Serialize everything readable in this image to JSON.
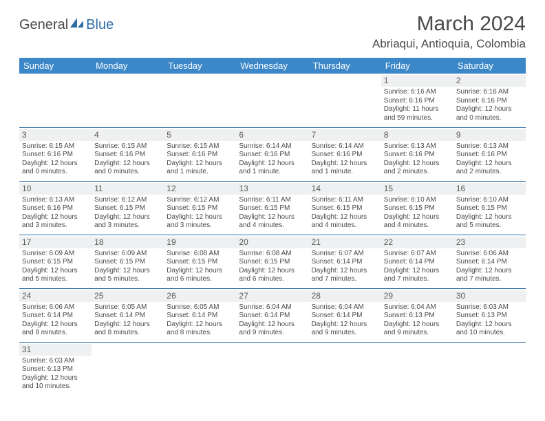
{
  "logo": {
    "text1": "General",
    "text2": "Blue",
    "icon_color": "#2f6da8"
  },
  "title": "March 2024",
  "location": "Abriaqui, Antioquia, Colombia",
  "header_bg": "#3b87c8",
  "dayhead_bg": "#eef0f1",
  "border_color": "#2f6da8",
  "weekdays": [
    "Sunday",
    "Monday",
    "Tuesday",
    "Wednesday",
    "Thursday",
    "Friday",
    "Saturday"
  ],
  "weeks": [
    [
      {
        "n": "",
        "sr": "",
        "ss": "",
        "dl": ""
      },
      {
        "n": "",
        "sr": "",
        "ss": "",
        "dl": ""
      },
      {
        "n": "",
        "sr": "",
        "ss": "",
        "dl": ""
      },
      {
        "n": "",
        "sr": "",
        "ss": "",
        "dl": ""
      },
      {
        "n": "",
        "sr": "",
        "ss": "",
        "dl": ""
      },
      {
        "n": "1",
        "sr": "Sunrise: 6:16 AM",
        "ss": "Sunset: 6:16 PM",
        "dl": "Daylight: 11 hours and 59 minutes."
      },
      {
        "n": "2",
        "sr": "Sunrise: 6:16 AM",
        "ss": "Sunset: 6:16 PM",
        "dl": "Daylight: 12 hours and 0 minutes."
      }
    ],
    [
      {
        "n": "3",
        "sr": "Sunrise: 6:15 AM",
        "ss": "Sunset: 6:16 PM",
        "dl": "Daylight: 12 hours and 0 minutes."
      },
      {
        "n": "4",
        "sr": "Sunrise: 6:15 AM",
        "ss": "Sunset: 6:16 PM",
        "dl": "Daylight: 12 hours and 0 minutes."
      },
      {
        "n": "5",
        "sr": "Sunrise: 6:15 AM",
        "ss": "Sunset: 6:16 PM",
        "dl": "Daylight: 12 hours and 1 minute."
      },
      {
        "n": "6",
        "sr": "Sunrise: 6:14 AM",
        "ss": "Sunset: 6:16 PM",
        "dl": "Daylight: 12 hours and 1 minute."
      },
      {
        "n": "7",
        "sr": "Sunrise: 6:14 AM",
        "ss": "Sunset: 6:16 PM",
        "dl": "Daylight: 12 hours and 1 minute."
      },
      {
        "n": "8",
        "sr": "Sunrise: 6:13 AM",
        "ss": "Sunset: 6:16 PM",
        "dl": "Daylight: 12 hours and 2 minutes."
      },
      {
        "n": "9",
        "sr": "Sunrise: 6:13 AM",
        "ss": "Sunset: 6:16 PM",
        "dl": "Daylight: 12 hours and 2 minutes."
      }
    ],
    [
      {
        "n": "10",
        "sr": "Sunrise: 6:13 AM",
        "ss": "Sunset: 6:16 PM",
        "dl": "Daylight: 12 hours and 3 minutes."
      },
      {
        "n": "11",
        "sr": "Sunrise: 6:12 AM",
        "ss": "Sunset: 6:15 PM",
        "dl": "Daylight: 12 hours and 3 minutes."
      },
      {
        "n": "12",
        "sr": "Sunrise: 6:12 AM",
        "ss": "Sunset: 6:15 PM",
        "dl": "Daylight: 12 hours and 3 minutes."
      },
      {
        "n": "13",
        "sr": "Sunrise: 6:11 AM",
        "ss": "Sunset: 6:15 PM",
        "dl": "Daylight: 12 hours and 4 minutes."
      },
      {
        "n": "14",
        "sr": "Sunrise: 6:11 AM",
        "ss": "Sunset: 6:15 PM",
        "dl": "Daylight: 12 hours and 4 minutes."
      },
      {
        "n": "15",
        "sr": "Sunrise: 6:10 AM",
        "ss": "Sunset: 6:15 PM",
        "dl": "Daylight: 12 hours and 4 minutes."
      },
      {
        "n": "16",
        "sr": "Sunrise: 6:10 AM",
        "ss": "Sunset: 6:15 PM",
        "dl": "Daylight: 12 hours and 5 minutes."
      }
    ],
    [
      {
        "n": "17",
        "sr": "Sunrise: 6:09 AM",
        "ss": "Sunset: 6:15 PM",
        "dl": "Daylight: 12 hours and 5 minutes."
      },
      {
        "n": "18",
        "sr": "Sunrise: 6:09 AM",
        "ss": "Sunset: 6:15 PM",
        "dl": "Daylight: 12 hours and 5 minutes."
      },
      {
        "n": "19",
        "sr": "Sunrise: 6:08 AM",
        "ss": "Sunset: 6:15 PM",
        "dl": "Daylight: 12 hours and 6 minutes."
      },
      {
        "n": "20",
        "sr": "Sunrise: 6:08 AM",
        "ss": "Sunset: 6:15 PM",
        "dl": "Daylight: 12 hours and 6 minutes."
      },
      {
        "n": "21",
        "sr": "Sunrise: 6:07 AM",
        "ss": "Sunset: 6:14 PM",
        "dl": "Daylight: 12 hours and 7 minutes."
      },
      {
        "n": "22",
        "sr": "Sunrise: 6:07 AM",
        "ss": "Sunset: 6:14 PM",
        "dl": "Daylight: 12 hours and 7 minutes."
      },
      {
        "n": "23",
        "sr": "Sunrise: 6:06 AM",
        "ss": "Sunset: 6:14 PM",
        "dl": "Daylight: 12 hours and 7 minutes."
      }
    ],
    [
      {
        "n": "24",
        "sr": "Sunrise: 6:06 AM",
        "ss": "Sunset: 6:14 PM",
        "dl": "Daylight: 12 hours and 8 minutes."
      },
      {
        "n": "25",
        "sr": "Sunrise: 6:05 AM",
        "ss": "Sunset: 6:14 PM",
        "dl": "Daylight: 12 hours and 8 minutes."
      },
      {
        "n": "26",
        "sr": "Sunrise: 6:05 AM",
        "ss": "Sunset: 6:14 PM",
        "dl": "Daylight: 12 hours and 8 minutes."
      },
      {
        "n": "27",
        "sr": "Sunrise: 6:04 AM",
        "ss": "Sunset: 6:14 PM",
        "dl": "Daylight: 12 hours and 9 minutes."
      },
      {
        "n": "28",
        "sr": "Sunrise: 6:04 AM",
        "ss": "Sunset: 6:14 PM",
        "dl": "Daylight: 12 hours and 9 minutes."
      },
      {
        "n": "29",
        "sr": "Sunrise: 6:04 AM",
        "ss": "Sunset: 6:13 PM",
        "dl": "Daylight: 12 hours and 9 minutes."
      },
      {
        "n": "30",
        "sr": "Sunrise: 6:03 AM",
        "ss": "Sunset: 6:13 PM",
        "dl": "Daylight: 12 hours and 10 minutes."
      }
    ],
    [
      {
        "n": "31",
        "sr": "Sunrise: 6:03 AM",
        "ss": "Sunset: 6:13 PM",
        "dl": "Daylight: 12 hours and 10 minutes."
      },
      {
        "n": "",
        "sr": "",
        "ss": "",
        "dl": ""
      },
      {
        "n": "",
        "sr": "",
        "ss": "",
        "dl": ""
      },
      {
        "n": "",
        "sr": "",
        "ss": "",
        "dl": ""
      },
      {
        "n": "",
        "sr": "",
        "ss": "",
        "dl": ""
      },
      {
        "n": "",
        "sr": "",
        "ss": "",
        "dl": ""
      },
      {
        "n": "",
        "sr": "",
        "ss": "",
        "dl": ""
      }
    ]
  ]
}
